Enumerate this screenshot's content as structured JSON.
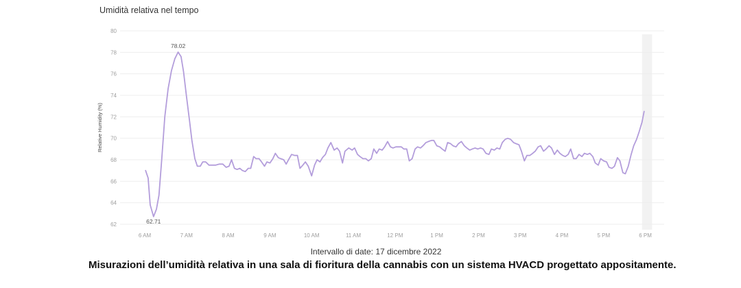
{
  "chart_title": "Umidità relativa nel tempo",
  "date_range": "Intervallo di date: 17 dicembre 2022",
  "caption": "Misurazioni dell’umidità relativa in una sala di fioritura della cannabis con un sistema HVACD progettato appositamente.",
  "colors": {
    "line": "#b39ddb",
    "grid": "#eeeeee",
    "tick_text": "#9e9e9e",
    "highlight_band": "#f2f2f2",
    "annotation_text": "#555555"
  },
  "chart_data": {
    "type": "line",
    "title": "Umidità relativa nel tempo",
    "xlabel": "",
    "ylabel": "Relative Humidity (%)",
    "ylim": [
      62,
      80
    ],
    "yticks": [
      62,
      64,
      66,
      68,
      70,
      72,
      74,
      76,
      78,
      80
    ],
    "xticks": [
      "6 AM",
      "7 AM",
      "8 AM",
      "9 AM",
      "10 AM",
      "11 AM",
      "12 PM",
      "1 PM",
      "2 PM",
      "3 PM",
      "4 PM",
      "5 PM",
      "6 PM"
    ],
    "xrange_hours": [
      6,
      18
    ],
    "grid": true,
    "legend": null,
    "annotations": [
      {
        "label": "78.02",
        "x_hour": 6.8,
        "value": 78.02,
        "type": "max"
      },
      {
        "label": "62.71",
        "x_hour": 6.21,
        "value": 62.71,
        "type": "min"
      }
    ],
    "highlight_band_hours": [
      17.92,
      18.16
    ],
    "series": [
      {
        "name": "Relative Humidity (%)",
        "x_hours": [
          6.02,
          6.08,
          6.13,
          6.21,
          6.28,
          6.34,
          6.41,
          6.48,
          6.56,
          6.64,
          6.72,
          6.8,
          6.87,
          6.93,
          7.0,
          7.07,
          7.13,
          7.2,
          7.26,
          7.33,
          7.39,
          7.46,
          7.54,
          7.62,
          7.7,
          7.79,
          7.87,
          7.95,
          8.02,
          8.08,
          8.15,
          8.21,
          8.28,
          8.34,
          8.41,
          8.48,
          8.54,
          8.61,
          8.67,
          8.74,
          8.8,
          8.87,
          8.93,
          9.0,
          9.07,
          9.13,
          9.2,
          9.26,
          9.33,
          9.39,
          9.46,
          9.52,
          9.59,
          9.66,
          9.72,
          9.79,
          9.85,
          9.92,
          10.0,
          10.07,
          10.13,
          10.2,
          10.26,
          10.33,
          10.39,
          10.46,
          10.54,
          10.61,
          10.67,
          10.74,
          10.8,
          10.89,
          10.97,
          11.03,
          11.1,
          11.16,
          11.23,
          11.3,
          11.36,
          11.43,
          11.49,
          11.56,
          11.62,
          11.69,
          11.75,
          11.82,
          11.89,
          11.95,
          12.02,
          12.08,
          12.15,
          12.21,
          12.28,
          12.34,
          12.41,
          12.48,
          12.54,
          12.61,
          12.67,
          12.74,
          12.8,
          12.87,
          12.93,
          13.0,
          13.07,
          13.13,
          13.2,
          13.26,
          13.33,
          13.39,
          13.46,
          13.52,
          13.59,
          13.66,
          13.72,
          13.79,
          13.85,
          13.92,
          13.98,
          14.05,
          14.11,
          14.18,
          14.25,
          14.31,
          14.38,
          14.44,
          14.51,
          14.57,
          14.64,
          14.7,
          14.77,
          14.84,
          14.9,
          14.97,
          15.03,
          15.1,
          15.16,
          15.23,
          15.3,
          15.36,
          15.43,
          15.49,
          15.56,
          15.62,
          15.69,
          15.75,
          15.82,
          15.89,
          15.95,
          16.02,
          16.08,
          16.15,
          16.21,
          16.28,
          16.34,
          16.41,
          16.48,
          16.54,
          16.61,
          16.67,
          16.74,
          16.8,
          16.87,
          16.93,
          17.0,
          17.07,
          17.13,
          17.2,
          17.26,
          17.33,
          17.39,
          17.46,
          17.52,
          17.59,
          17.66,
          17.72,
          17.79,
          17.85,
          17.92,
          17.97,
          18.03
        ],
        "values": [
          67.0,
          66.3,
          63.8,
          62.71,
          63.4,
          64.7,
          68.2,
          72.0,
          74.6,
          76.3,
          77.4,
          78.02,
          77.6,
          76.2,
          73.9,
          71.7,
          69.8,
          68.1,
          67.4,
          67.4,
          67.8,
          67.8,
          67.5,
          67.5,
          67.5,
          67.6,
          67.6,
          67.3,
          67.4,
          68.0,
          67.2,
          67.1,
          67.2,
          67.0,
          66.9,
          67.2,
          67.2,
          68.3,
          68.1,
          68.1,
          67.8,
          67.4,
          67.8,
          67.7,
          68.1,
          68.6,
          68.2,
          68.1,
          68.0,
          67.6,
          68.1,
          68.5,
          68.4,
          68.4,
          67.2,
          67.5,
          67.8,
          67.4,
          66.5,
          67.5,
          68.0,
          67.8,
          68.2,
          68.5,
          69.1,
          69.6,
          68.9,
          69.1,
          68.8,
          67.7,
          68.8,
          69.1,
          68.9,
          69.1,
          68.5,
          68.3,
          68.1,
          68.1,
          67.9,
          68.1,
          69.0,
          68.6,
          69.0,
          68.9,
          69.2,
          69.7,
          69.2,
          69.1,
          69.2,
          69.2,
          69.2,
          69.0,
          69.0,
          67.9,
          68.1,
          69.0,
          69.2,
          69.1,
          69.3,
          69.6,
          69.7,
          69.8,
          69.8,
          69.3,
          69.2,
          69.0,
          68.8,
          69.6,
          69.5,
          69.3,
          69.2,
          69.5,
          69.7,
          69.3,
          69.1,
          68.9,
          69.0,
          69.1,
          69.0,
          69.1,
          69.0,
          68.6,
          68.5,
          69.0,
          68.9,
          69.1,
          69.0,
          69.6,
          69.9,
          70.0,
          69.9,
          69.6,
          69.5,
          69.4,
          68.8,
          67.9,
          68.4,
          68.4,
          68.6,
          68.8,
          69.2,
          69.3,
          68.8,
          69.0,
          69.3,
          69.1,
          68.5,
          68.9,
          68.6,
          68.4,
          68.3,
          68.5,
          69.0,
          68.1,
          68.1,
          68.5,
          68.3,
          68.6,
          68.5,
          68.6,
          68.3,
          67.7,
          67.5,
          68.1,
          67.9,
          67.8,
          67.3,
          67.2,
          67.4,
          68.2,
          67.9,
          66.8,
          66.7,
          67.4,
          68.5,
          69.3,
          69.9,
          70.6,
          71.5,
          72.5
        ]
      }
    ]
  }
}
